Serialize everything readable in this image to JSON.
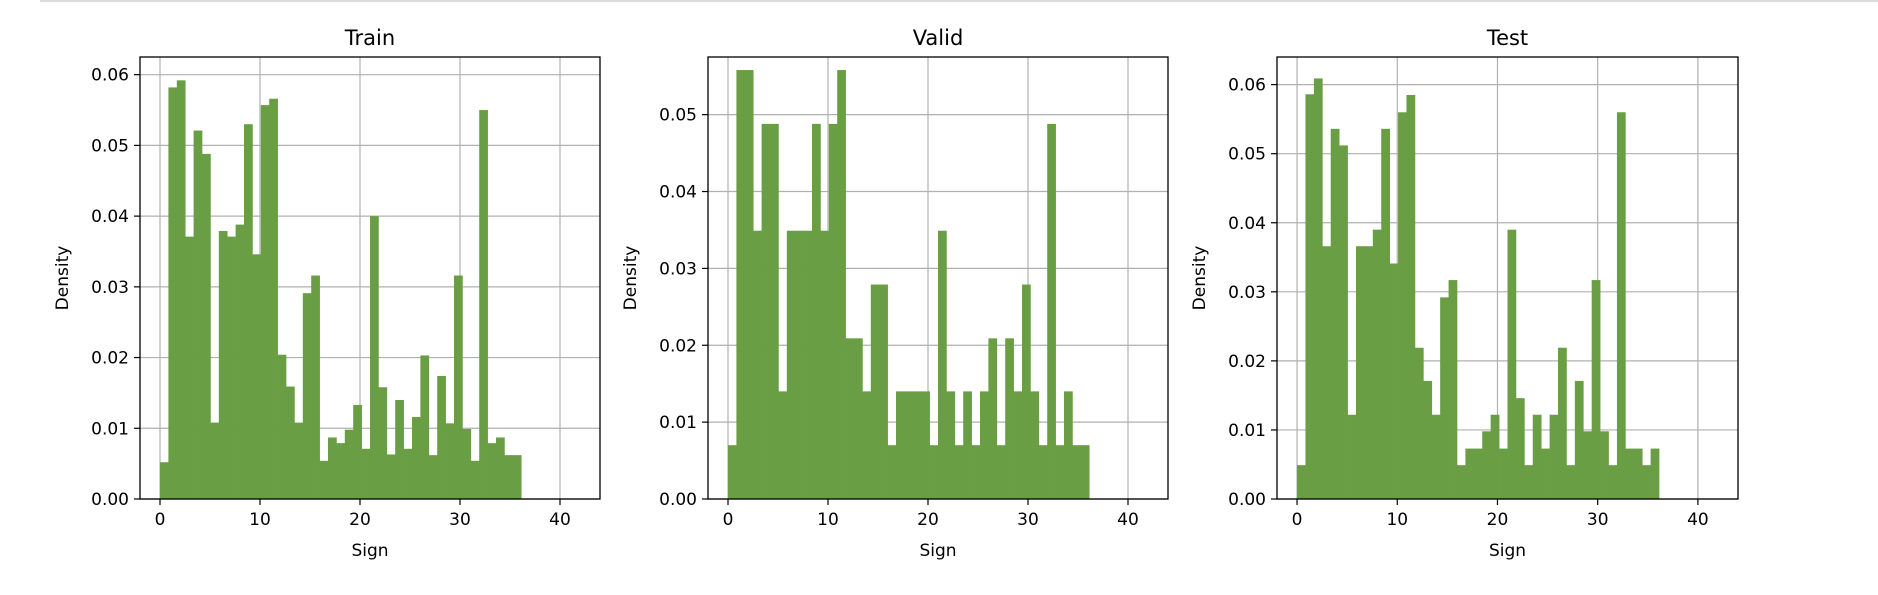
{
  "chart_data": [
    {
      "type": "bar",
      "title": "Train",
      "xlabel": "Sign",
      "ylabel": "Density",
      "xlim": [
        -2,
        44
      ],
      "ylim": [
        0,
        0.0625
      ],
      "xticks": [
        0,
        10,
        20,
        30,
        40
      ],
      "yticks": [
        0.0,
        0.01,
        0.02,
        0.03,
        0.04,
        0.05,
        0.06
      ],
      "ytick_labels": [
        "0.00",
        "0.01",
        "0.02",
        "0.03",
        "0.04",
        "0.05",
        "0.06"
      ],
      "xtick_labels": [
        "0",
        "10",
        "20",
        "30",
        "40"
      ],
      "grid": true,
      "bin_start": 0,
      "bin_width": 0.84,
      "values": [
        0.0052,
        0.0582,
        0.0592,
        0.0371,
        0.0521,
        0.0488,
        0.0108,
        0.0379,
        0.0371,
        0.0388,
        0.053,
        0.0346,
        0.0557,
        0.0566,
        0.0204,
        0.0159,
        0.0108,
        0.0291,
        0.0316,
        0.0054,
        0.0087,
        0.0079,
        0.0098,
        0.0133,
        0.0071,
        0.04,
        0.0158,
        0.0063,
        0.014,
        0.0071,
        0.0116,
        0.0203,
        0.0062,
        0.0174,
        0.0107,
        0.0316,
        0.0099,
        0.0054,
        0.055,
        0.0079,
        0.0087,
        0.0062,
        0.0062
      ],
      "bar_color": "#6a9e44"
    },
    {
      "type": "bar",
      "title": "Valid",
      "xlabel": "Sign",
      "ylabel": "Density",
      "xlim": [
        -2,
        44
      ],
      "ylim": [
        0,
        0.0575
      ],
      "xticks": [
        0,
        10,
        20,
        30,
        40
      ],
      "yticks": [
        0.0,
        0.01,
        0.02,
        0.03,
        0.04,
        0.05
      ],
      "ytick_labels": [
        "0.00",
        "0.01",
        "0.02",
        "0.03",
        "0.04",
        "0.05"
      ],
      "xtick_labels": [
        "0",
        "10",
        "20",
        "30",
        "40"
      ],
      "grid": true,
      "bin_start": 0,
      "bin_width": 0.84,
      "values": [
        0.007,
        0.0558,
        0.0558,
        0.0349,
        0.0488,
        0.0488,
        0.014,
        0.0349,
        0.0349,
        0.0349,
        0.0488,
        0.0349,
        0.0488,
        0.0558,
        0.0209,
        0.0209,
        0.014,
        0.0279,
        0.0279,
        0.007,
        0.014,
        0.014,
        0.014,
        0.014,
        0.007,
        0.0349,
        0.014,
        0.007,
        0.014,
        0.007,
        0.014,
        0.0209,
        0.007,
        0.0209,
        0.014,
        0.0279,
        0.014,
        0.007,
        0.0488,
        0.007,
        0.014,
        0.007,
        0.007
      ],
      "bar_color": "#6a9e44"
    },
    {
      "type": "bar",
      "title": "Test",
      "xlabel": "Sign",
      "ylabel": "Density",
      "xlim": [
        -2,
        44
      ],
      "ylim": [
        0,
        0.064
      ],
      "xticks": [
        0,
        10,
        20,
        30,
        40
      ],
      "yticks": [
        0.0,
        0.01,
        0.02,
        0.03,
        0.04,
        0.05,
        0.06
      ],
      "ytick_labels": [
        "0.00",
        "0.01",
        "0.02",
        "0.03",
        "0.04",
        "0.05",
        "0.06"
      ],
      "xtick_labels": [
        "0",
        "10",
        "20",
        "30",
        "40"
      ],
      "grid": true,
      "bin_start": 0,
      "bin_width": 0.84,
      "values": [
        0.0049,
        0.0586,
        0.0609,
        0.0366,
        0.0536,
        0.0512,
        0.0122,
        0.0366,
        0.0366,
        0.039,
        0.0536,
        0.0341,
        0.056,
        0.0585,
        0.0219,
        0.0171,
        0.0122,
        0.0292,
        0.0317,
        0.0049,
        0.0073,
        0.0073,
        0.0098,
        0.0122,
        0.0073,
        0.039,
        0.0146,
        0.0049,
        0.0122,
        0.0073,
        0.0122,
        0.0219,
        0.0049,
        0.0171,
        0.0098,
        0.0317,
        0.0098,
        0.0049,
        0.056,
        0.0073,
        0.0073,
        0.0049,
        0.0073
      ],
      "bar_color": "#6a9e44"
    }
  ],
  "colors": {
    "bar": "#6a9e44",
    "grid": "#b0b0b0",
    "axis": "#000000",
    "frame_line": "#cfcfcf"
  }
}
